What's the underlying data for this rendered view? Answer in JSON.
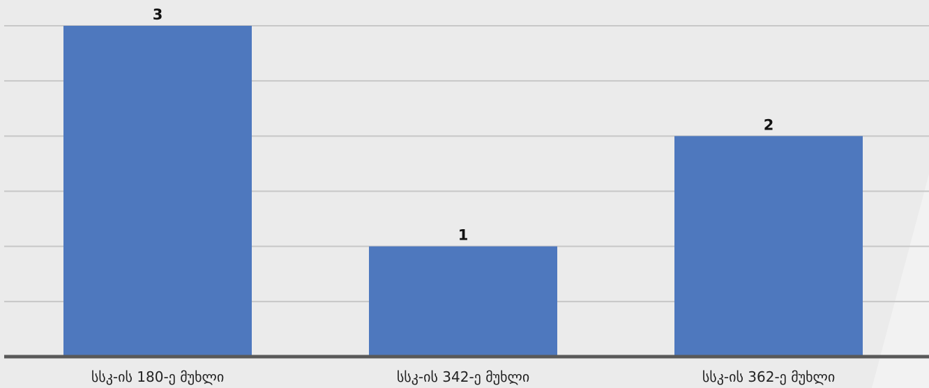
{
  "colors": {
    "background": "#ebebeb",
    "bar": "#4e78be",
    "grid": "#c7c7c7",
    "axis": "#595959"
  },
  "chart_data": {
    "type": "bar",
    "categories": [
      "სსკ-ის 180-ე მუხლი",
      "სსკ-ის 342-ე მუხლი",
      "სსკ-ის 362-ე მუხლი"
    ],
    "values": [
      3,
      1,
      2
    ],
    "data_labels": [
      "3",
      "1",
      "2"
    ],
    "ylim": [
      0,
      3.0
    ],
    "y_gridlines": [
      0.5,
      1.0,
      1.5,
      2.0,
      2.5,
      3.0
    ],
    "grid": true,
    "legend": "none",
    "title": "",
    "xlabel": "",
    "ylabel": ""
  }
}
